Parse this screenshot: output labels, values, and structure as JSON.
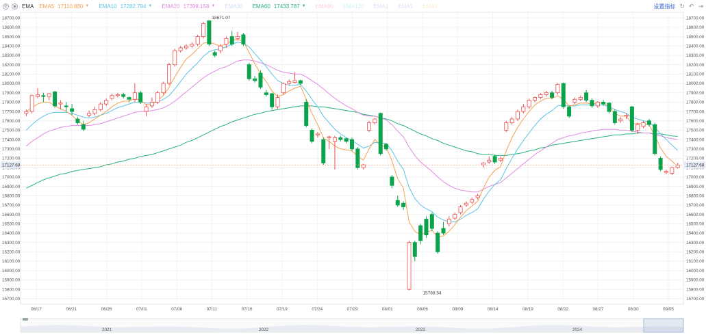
{
  "legend": {
    "indicator": "EMA",
    "items": [
      {
        "name": "EMA5",
        "value": "17110.880",
        "color": "#f5a053",
        "dim": false
      },
      {
        "name": "EMA10",
        "value": "17282.794",
        "color": "#5cc3e6",
        "dim": false
      },
      {
        "name": "EMA20",
        "value": "17398.158",
        "color": "#e08ae0",
        "dim": false
      },
      {
        "name": "EMA30",
        "value": "",
        "color": "#8fb7f0",
        "dim": true
      },
      {
        "name": "EMA60",
        "value": "17433.787",
        "color": "#27b07c",
        "dim": false
      },
      {
        "name": "EMA90",
        "value": "",
        "color": "#f28fa8",
        "dim": true
      },
      {
        "name": "EMA120",
        "value": "",
        "color": "#8fe0e6",
        "dim": true
      },
      {
        "name": "EMA1",
        "value": "",
        "color": "#b0b8ee",
        "dim": true
      },
      {
        "name": "EMA1",
        "value": "",
        "color": "#b0b8ee",
        "dim": true
      },
      {
        "name": "EMA1",
        "value": "",
        "color": "#f0d080",
        "dim": true
      }
    ],
    "right_link": "设置指标"
  },
  "chart_data": {
    "type": "candlestick",
    "up_color": "#ee4b4b",
    "down_color": "#0aa24a",
    "y_ticks": [
      "18700.00",
      "18600.00",
      "18500.00",
      "18400.00",
      "18300.00",
      "18200.00",
      "18100.00",
      "18000.00",
      "17900.00",
      "17800.00",
      "17700.00",
      "17600.00",
      "17500.00",
      "17400.00",
      "17300.00",
      "17200.00",
      "17100.00",
      "17000.00",
      "16900.00",
      "16800.00",
      "16700.00",
      "16600.00",
      "16500.00",
      "16400.00",
      "16300.00",
      "16200.00",
      "16100.00",
      "16000.00",
      "15900.00",
      "15800.00",
      "15700.00"
    ],
    "ylim": [
      15640,
      18760
    ],
    "x_ticks": [
      "06/17",
      "06/21",
      "06/26",
      "07/01",
      "07/08",
      "07/11",
      "07/16",
      "07/19",
      "07/24",
      "07/29",
      "08/01",
      "08/06",
      "08/09",
      "08/14",
      "08/19",
      "08/22",
      "08/27",
      "08/30",
      "09/05"
    ],
    "current_price": "17127.68",
    "high_label": "18671.07",
    "low_label": "15788.54",
    "candles": [
      [
        17680,
        17700,
        17650,
        17720
      ],
      [
        17700,
        17870,
        17680,
        17880
      ],
      [
        17860,
        17880,
        17840,
        17950
      ],
      [
        17870,
        17860,
        17800,
        17900
      ],
      [
        17860,
        17890,
        17820,
        17900
      ],
      [
        17910,
        17760,
        17740,
        17920
      ],
      [
        17780,
        17790,
        17720,
        17820
      ],
      [
        17760,
        17750,
        17700,
        17800
      ],
      [
        17730,
        17700,
        17660,
        17780
      ],
      [
        17620,
        17580,
        17560,
        17640
      ],
      [
        17560,
        17510,
        17490,
        17600
      ],
      [
        17660,
        17680,
        17640,
        17710
      ],
      [
        17680,
        17720,
        17660,
        17750
      ],
      [
        17720,
        17780,
        17700,
        17800
      ],
      [
        17780,
        17820,
        17760,
        17840
      ],
      [
        17840,
        17870,
        17820,
        17890
      ],
      [
        17870,
        17880,
        17850,
        17900
      ],
      [
        17880,
        17860,
        17840,
        17900
      ],
      [
        17850,
        17830,
        17800,
        17860
      ],
      [
        17830,
        17900,
        17800,
        18000
      ],
      [
        17900,
        17800,
        17780,
        17920
      ],
      [
        17700,
        17750,
        17650,
        17780
      ],
      [
        17760,
        17800,
        17740,
        17850
      ],
      [
        17800,
        17900,
        17780,
        17920
      ],
      [
        17900,
        18000,
        17880,
        18020
      ],
      [
        18000,
        18200,
        17980,
        18220
      ],
      [
        18200,
        18350,
        18180,
        18370
      ],
      [
        18350,
        18380,
        18330,
        18400
      ],
      [
        18380,
        18400,
        18360,
        18420
      ],
      [
        18400,
        18420,
        18380,
        18440
      ],
      [
        18420,
        18500,
        18400,
        18520
      ],
      [
        18500,
        18640,
        18480,
        18660
      ],
      [
        18670,
        18420,
        18400,
        18671
      ],
      [
        18330,
        18300,
        18280,
        18350
      ],
      [
        18350,
        18400,
        18320,
        18420
      ],
      [
        18420,
        18480,
        18380,
        18500
      ],
      [
        18500,
        18420,
        18400,
        18560
      ],
      [
        18480,
        18500,
        18460,
        18550
      ],
      [
        18520,
        18420,
        18400,
        18540
      ],
      [
        18200,
        18050,
        18030,
        18220
      ],
      [
        18050,
        18030,
        18010,
        18080
      ],
      [
        18110,
        17960,
        17940,
        18140
      ],
      [
        17900,
        17880,
        17860,
        17930
      ],
      [
        17890,
        17750,
        17720,
        17900
      ],
      [
        17750,
        17850,
        17730,
        17880
      ],
      [
        17900,
        18000,
        17880,
        18010
      ],
      [
        18000,
        18020,
        17980,
        18040
      ],
      [
        18010,
        18030,
        18000,
        18120
      ],
      [
        18030,
        18000,
        17980,
        18040
      ],
      [
        17800,
        17550,
        17530,
        17830
      ],
      [
        17500,
        17380,
        17360,
        17520
      ],
      [
        17450,
        17460,
        17420,
        17480
      ],
      [
        17400,
        17150,
        17130,
        17420
      ],
      [
        17420,
        17430,
        17300,
        17440
      ],
      [
        17380,
        17420,
        17080,
        17440
      ],
      [
        17420,
        17400,
        17380,
        17440
      ],
      [
        17410,
        17380,
        17360,
        17420
      ],
      [
        17400,
        17300,
        17280,
        17420
      ],
      [
        17300,
        17100,
        17080,
        17320
      ],
      [
        17100,
        17130,
        17080,
        17140
      ],
      [
        17500,
        17580,
        17480,
        17600
      ],
      [
        17580,
        17620,
        17560,
        17630
      ],
      [
        17680,
        17250,
        17230,
        17690
      ],
      [
        17350,
        17300,
        17280,
        17360
      ],
      [
        17000,
        16910,
        16880,
        17020
      ],
      [
        16750,
        16700,
        16680,
        16800
      ],
      [
        16720,
        16680,
        16650,
        16740
      ],
      [
        15800,
        16300,
        15789,
        16320
      ],
      [
        16300,
        16150,
        16100,
        16320
      ],
      [
        16480,
        16320,
        16280,
        16500
      ],
      [
        16550,
        16380,
        16350,
        16580
      ],
      [
        16600,
        16450,
        16420,
        16620
      ],
      [
        16400,
        16200,
        16180,
        16420
      ],
      [
        16450,
        16400,
        16380,
        16520
      ],
      [
        16500,
        16550,
        16470,
        16580
      ],
      [
        16560,
        16600,
        16540,
        16620
      ],
      [
        16620,
        16680,
        16600,
        16700
      ],
      [
        16700,
        16720,
        16680,
        16740
      ],
      [
        16730,
        16760,
        16710,
        16780
      ],
      [
        16780,
        16800,
        16760,
        16820
      ],
      [
        17130,
        17150,
        17100,
        17160
      ],
      [
        17160,
        17180,
        17140,
        17220
      ],
      [
        17220,
        17160,
        17140,
        17240
      ],
      [
        17180,
        17200,
        17160,
        17220
      ],
      [
        17500,
        17580,
        17480,
        17600
      ],
      [
        17580,
        17620,
        17560,
        17640
      ],
      [
        17620,
        17700,
        17600,
        17720
      ],
      [
        17700,
        17750,
        17680,
        17780
      ],
      [
        17750,
        17820,
        17730,
        17840
      ],
      [
        17820,
        17850,
        17800,
        17860
      ],
      [
        17850,
        17880,
        17830,
        17900
      ],
      [
        17880,
        17900,
        17860,
        17920
      ],
      [
        17900,
        17850,
        17830,
        17920
      ],
      [
        17900,
        17990,
        17880,
        18000
      ],
      [
        18000,
        17750,
        17730,
        18010
      ],
      [
        17750,
        17650,
        17630,
        17760
      ],
      [
        17800,
        17830,
        17780,
        17850
      ],
      [
        17830,
        17850,
        17810,
        17870
      ],
      [
        17900,
        17820,
        17800,
        17930
      ],
      [
        17820,
        17760,
        17740,
        17840
      ],
      [
        17760,
        17800,
        17740,
        17810
      ],
      [
        17800,
        17780,
        17760,
        17820
      ],
      [
        17790,
        17700,
        17680,
        17800
      ],
      [
        17700,
        17580,
        17560,
        17720
      ],
      [
        17600,
        17620,
        17580,
        17640
      ],
      [
        17650,
        17660,
        17620,
        17680
      ],
      [
        17750,
        17500,
        17480,
        17760
      ],
      [
        17500,
        17560,
        17460,
        17580
      ],
      [
        17540,
        17580,
        17520,
        17600
      ],
      [
        17600,
        17560,
        17540,
        17620
      ],
      [
        17560,
        17250,
        17230,
        17580
      ],
      [
        17200,
        17080,
        17060,
        17220
      ],
      [
        17050,
        17060,
        17030,
        17080
      ],
      [
        17040,
        17100,
        17020,
        17110
      ],
      [
        17100,
        17127,
        17090,
        17150
      ]
    ],
    "ema": {
      "ema5": [
        17700,
        17740,
        17780,
        17800,
        17800,
        17760,
        17730,
        17700,
        17660,
        17600,
        17560,
        17580,
        17620,
        17660,
        17700,
        17750,
        17790,
        17810,
        17810,
        17840,
        17820,
        17770,
        17780,
        17820,
        17870,
        17960,
        18070,
        18170,
        18260,
        18310,
        18370,
        18430,
        18440,
        18420,
        18400,
        18420,
        18460,
        18470,
        18450,
        18330,
        18210,
        18100,
        18020,
        17920,
        17860,
        17880,
        17920,
        17950,
        17970,
        17830,
        17680,
        17560,
        17420,
        17380,
        17330,
        17300,
        17290,
        17280,
        17220,
        17180,
        17300,
        17400,
        17340,
        17320,
        17170,
        16980,
        16880,
        16520,
        16420,
        16380,
        16410,
        16430,
        16360,
        16370,
        16420,
        16490,
        16570,
        16640,
        16690,
        16740,
        16880,
        17000,
        17070,
        17110,
        17280,
        17420,
        17530,
        17620,
        17700,
        17770,
        17810,
        17840,
        17840,
        17870,
        17830,
        17760,
        17770,
        17790,
        17790,
        17780,
        17790,
        17790,
        17750,
        17680,
        17650,
        17650,
        17570,
        17570,
        17570,
        17560,
        17440,
        17310,
        17220,
        17170,
        17111
      ],
      "ema10": [
        17500,
        17560,
        17610,
        17650,
        17680,
        17690,
        17690,
        17690,
        17680,
        17660,
        17640,
        17630,
        17640,
        17660,
        17680,
        17710,
        17740,
        17760,
        17780,
        17800,
        17800,
        17790,
        17790,
        17800,
        17830,
        17870,
        17940,
        18020,
        18100,
        18160,
        18220,
        18290,
        18340,
        18360,
        18370,
        18390,
        18420,
        18440,
        18430,
        18390,
        18320,
        18250,
        18180,
        18100,
        18030,
        18000,
        17980,
        17980,
        17990,
        17920,
        17830,
        17750,
        17650,
        17580,
        17510,
        17460,
        17420,
        17390,
        17350,
        17310,
        17330,
        17370,
        17360,
        17360,
        17280,
        17170,
        17080,
        16890,
        16770,
        16700,
        16660,
        16630,
        16570,
        16540,
        16520,
        16520,
        16550,
        16590,
        16620,
        16660,
        16760,
        16850,
        16920,
        16970,
        17090,
        17200,
        17300,
        17390,
        17470,
        17550,
        17620,
        17670,
        17710,
        17760,
        17770,
        17760,
        17760,
        17770,
        17770,
        17770,
        17770,
        17770,
        17750,
        17720,
        17700,
        17680,
        17640,
        17620,
        17600,
        17590,
        17530,
        17460,
        17400,
        17340,
        17283
      ],
      "ema20": [
        17330,
        17380,
        17420,
        17460,
        17490,
        17510,
        17530,
        17540,
        17550,
        17550,
        17550,
        17550,
        17560,
        17570,
        17590,
        17610,
        17630,
        17650,
        17670,
        17690,
        17700,
        17700,
        17710,
        17720,
        17740,
        17770,
        17810,
        17860,
        17910,
        17960,
        18010,
        18060,
        18100,
        18130,
        18160,
        18180,
        18210,
        18240,
        18250,
        18250,
        18240,
        18220,
        18200,
        18170,
        18140,
        18120,
        18110,
        18100,
        18100,
        18070,
        18030,
        17990,
        17940,
        17890,
        17840,
        17800,
        17760,
        17730,
        17690,
        17660,
        17650,
        17650,
        17630,
        17610,
        17560,
        17490,
        17430,
        17320,
        17230,
        17160,
        17110,
        17060,
        17000,
        16950,
        16910,
        16880,
        16860,
        16850,
        16840,
        16840,
        16870,
        16900,
        16920,
        16940,
        16990,
        17040,
        17090,
        17140,
        17190,
        17240,
        17280,
        17320,
        17360,
        17400,
        17420,
        17440,
        17450,
        17470,
        17480,
        17490,
        17500,
        17510,
        17510,
        17510,
        17500,
        17500,
        17490,
        17480,
        17470,
        17470,
        17450,
        17440,
        17420,
        17410,
        17398
      ],
      "ema60": [
        16880,
        16910,
        16940,
        16970,
        16990,
        17010,
        17030,
        17040,
        17060,
        17070,
        17080,
        17090,
        17100,
        17110,
        17130,
        17140,
        17160,
        17170,
        17190,
        17200,
        17220,
        17230,
        17240,
        17260,
        17280,
        17300,
        17320,
        17340,
        17370,
        17390,
        17420,
        17450,
        17480,
        17510,
        17540,
        17560,
        17590,
        17610,
        17630,
        17650,
        17670,
        17680,
        17700,
        17710,
        17720,
        17730,
        17740,
        17750,
        17760,
        17760,
        17760,
        17750,
        17750,
        17740,
        17730,
        17720,
        17710,
        17700,
        17690,
        17670,
        17660,
        17650,
        17630,
        17620,
        17600,
        17570,
        17550,
        17520,
        17490,
        17460,
        17440,
        17410,
        17390,
        17360,
        17340,
        17320,
        17300,
        17280,
        17270,
        17250,
        17240,
        17240,
        17230,
        17230,
        17230,
        17240,
        17250,
        17260,
        17280,
        17290,
        17310,
        17320,
        17340,
        17350,
        17360,
        17370,
        17380,
        17390,
        17400,
        17410,
        17420,
        17430,
        17440,
        17450,
        17450,
        17460,
        17460,
        17470,
        17470,
        17470,
        17460,
        17460,
        17450,
        17440,
        17434
      ]
    }
  },
  "navigator": {
    "year_labels": [
      "2021",
      "2022",
      "2023",
      "2024"
    ]
  }
}
